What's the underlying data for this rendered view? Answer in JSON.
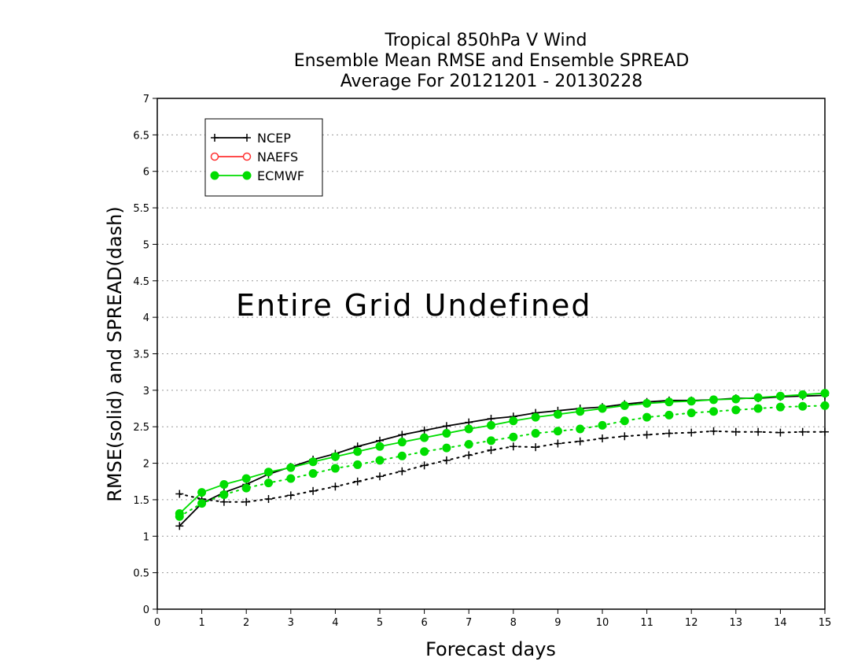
{
  "chart_data": {
    "type": "line",
    "title": [
      "Tropical 850hPa V Wind",
      "Ensemble Mean RMSE and Ensemble SPREAD",
      "Average For 20121201 - 20130228"
    ],
    "xlabel": "Forecast days",
    "ylabel": "RMSE(solid) and SPREAD(dash)",
    "xlim": [
      0,
      15
    ],
    "ylim": [
      0,
      7
    ],
    "xticks": [
      "0",
      "1",
      "2",
      "3",
      "4",
      "5",
      "6",
      "7",
      "8",
      "9",
      "10",
      "11",
      "12",
      "13",
      "14",
      "15"
    ],
    "yticks": [
      "0",
      "0.5",
      "1",
      "1.5",
      "2",
      "2.5",
      "3",
      "3.5",
      "4",
      "4.5",
      "5",
      "5.5",
      "6",
      "6.5",
      "7"
    ],
    "grid": "horizontal dotted",
    "legend_position": "top-left",
    "annotation": "Entire Grid Undefined",
    "x": [
      0.5,
      1,
      1.5,
      2,
      2.5,
      3,
      3.5,
      4,
      4.5,
      5,
      5.5,
      6,
      6.5,
      7,
      7.5,
      8,
      8.5,
      9,
      9.5,
      10,
      10.5,
      11,
      11.5,
      12,
      12.5,
      13,
      13.5,
      14,
      14.5,
      15
    ],
    "series": [
      {
        "name": "NCEP",
        "color": "#000000",
        "marker": "plus",
        "rmse": [
          1.14,
          1.45,
          1.6,
          1.71,
          1.85,
          1.95,
          2.05,
          2.13,
          2.23,
          2.31,
          2.39,
          2.45,
          2.51,
          2.56,
          2.61,
          2.64,
          2.69,
          2.72,
          2.75,
          2.77,
          2.81,
          2.84,
          2.86,
          2.86,
          2.87,
          2.89,
          2.89,
          2.91,
          2.92,
          2.93
        ],
        "spread": [
          1.58,
          1.51,
          1.47,
          1.47,
          1.51,
          1.56,
          1.62,
          1.68,
          1.75,
          1.82,
          1.89,
          1.97,
          2.04,
          2.11,
          2.18,
          2.23,
          2.22,
          2.27,
          2.3,
          2.34,
          2.37,
          2.39,
          2.41,
          2.42,
          2.44,
          2.43,
          2.43,
          2.42,
          2.43,
          2.43
        ]
      },
      {
        "name": "NAEFS",
        "color": "#ff3333",
        "marker": "open-circle",
        "rmse": [],
        "spread": []
      },
      {
        "name": "ECMWF",
        "color": "#00dd00",
        "marker": "filled-circle",
        "rmse": [
          1.31,
          1.6,
          1.71,
          1.79,
          1.88,
          1.94,
          2.02,
          2.09,
          2.16,
          2.23,
          2.29,
          2.35,
          2.41,
          2.47,
          2.52,
          2.58,
          2.63,
          2.67,
          2.71,
          2.75,
          2.79,
          2.82,
          2.84,
          2.85,
          2.87,
          2.88,
          2.9,
          2.92,
          2.94,
          2.96
        ],
        "spread": [
          1.27,
          1.45,
          1.57,
          1.66,
          1.73,
          1.79,
          1.86,
          1.93,
          1.98,
          2.04,
          2.1,
          2.16,
          2.21,
          2.26,
          2.31,
          2.36,
          2.41,
          2.44,
          2.47,
          2.52,
          2.58,
          2.63,
          2.66,
          2.69,
          2.71,
          2.73,
          2.75,
          2.77,
          2.78,
          2.79
        ]
      }
    ]
  }
}
